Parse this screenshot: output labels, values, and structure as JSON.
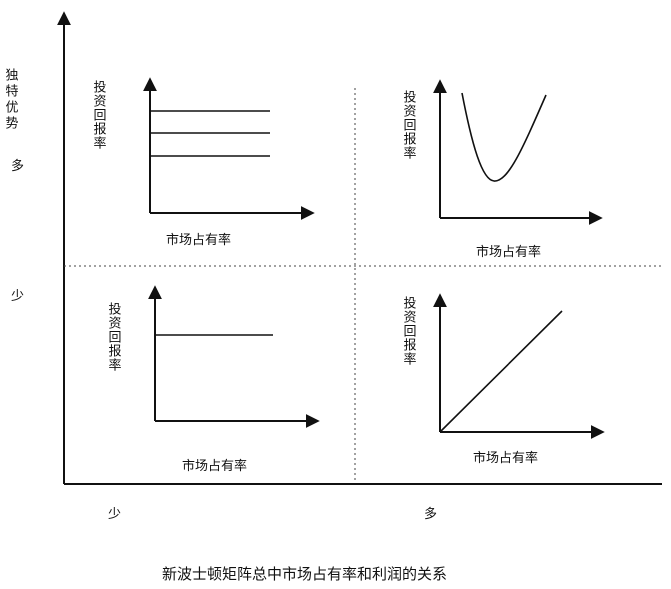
{
  "outer": {
    "y_label": "独特优势",
    "y_many": "多",
    "y_few": "少",
    "x_few": "少",
    "x_many": "多"
  },
  "quadrants": {
    "top_left": {
      "ylabel": "投资回报率",
      "xlabel": "市场占有率"
    },
    "top_right": {
      "ylabel": "投资回报率",
      "xlabel": "市场占有率"
    },
    "bottom_left": {
      "ylabel": "投资回报率",
      "xlabel": "市场占有率"
    },
    "bottom_right": {
      "ylabel": "投资回报率",
      "xlabel": "市场占有率"
    }
  },
  "caption": "新波士顿矩阵总中市场占有率和利润的关系"
}
